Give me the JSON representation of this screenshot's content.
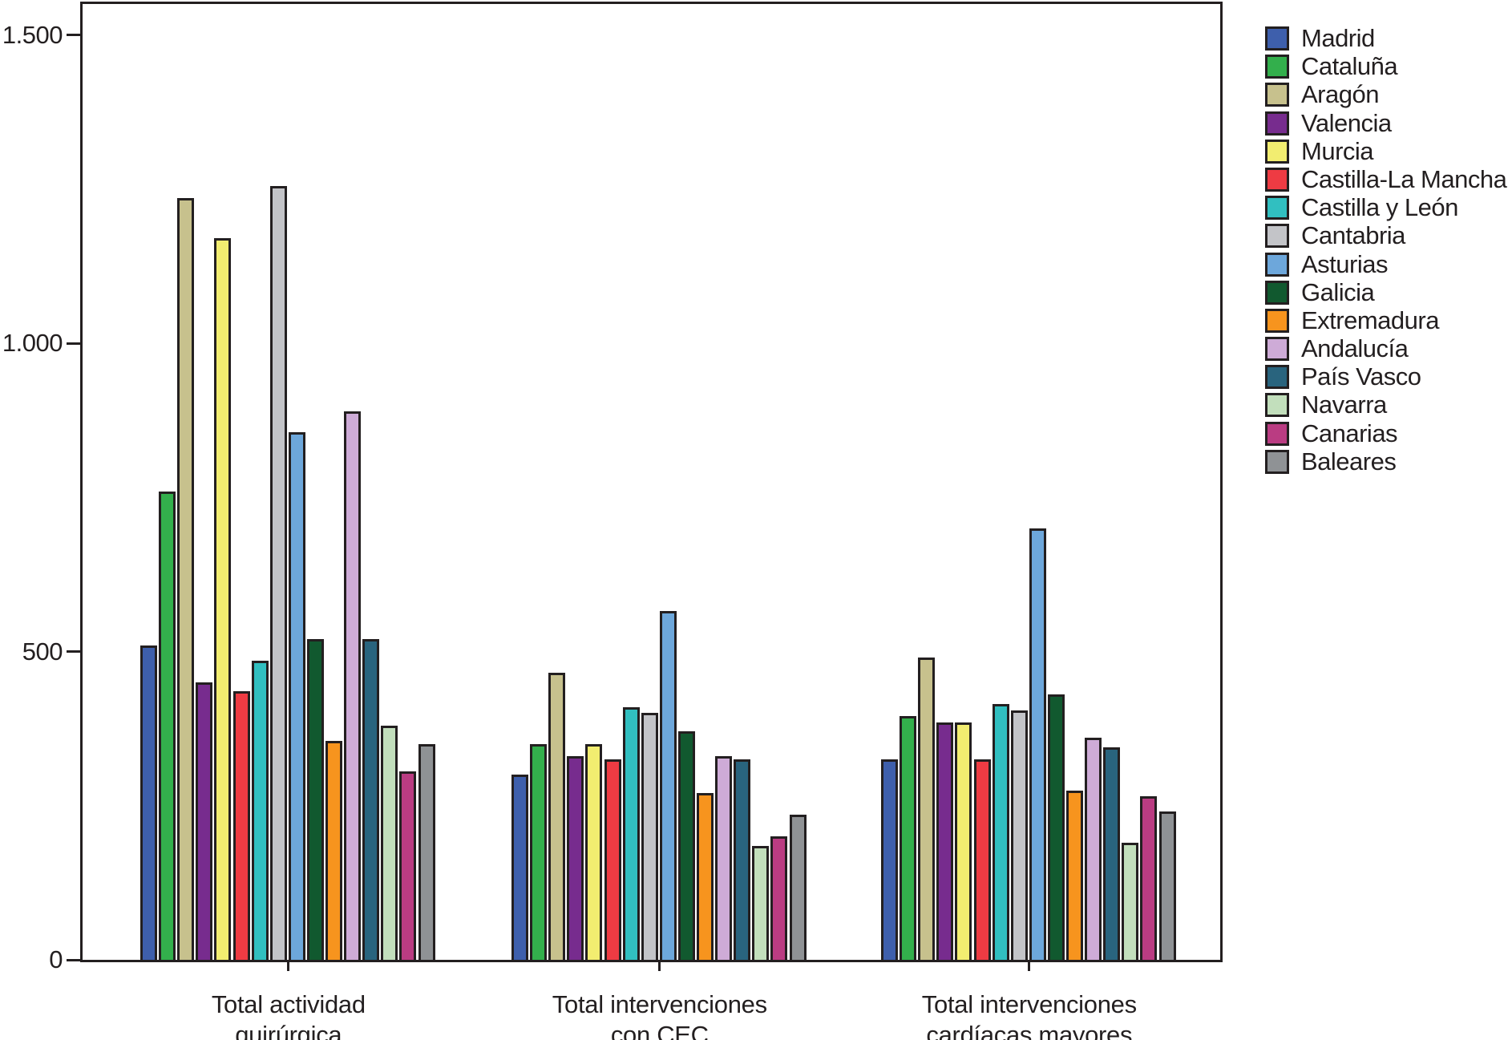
{
  "chart_data": {
    "type": "bar",
    "title": "",
    "categories": [
      "Total actividad\nquirúrgica",
      "Total intervenciones\ncon CEC",
      "Total intervenciones\ncardíacas mayores"
    ],
    "series": [
      {
        "name": "Madrid",
        "color": "#3E5FAC",
        "values": [
          510,
          300,
          325
        ]
      },
      {
        "name": "Cataluña",
        "color": "#33AF4C",
        "values": [
          760,
          350,
          395
        ]
      },
      {
        "name": "Aragón",
        "color": "#C7C18D",
        "values": [
          1235,
          465,
          490
        ]
      },
      {
        "name": "Valencia",
        "color": "#772C8E",
        "values": [
          450,
          330,
          385
        ]
      },
      {
        "name": "Murcia",
        "color": "#F2ED70",
        "values": [
          1170,
          350,
          385
        ]
      },
      {
        "name": "Castilla-La Mancha",
        "color": "#EE3B43",
        "values": [
          435,
          325,
          325
        ]
      },
      {
        "name": "Castilla y León",
        "color": "#31BFC0",
        "values": [
          485,
          410,
          415
        ]
      },
      {
        "name": "Cantabria",
        "color": "#C3C4C8",
        "values": [
          1255,
          400,
          405
        ]
      },
      {
        "name": "Asturias",
        "color": "#6DA7DB",
        "values": [
          855,
          565,
          700
        ]
      },
      {
        "name": "Galicia",
        "color": "#11592F",
        "values": [
          520,
          370,
          430
        ]
      },
      {
        "name": "Extremadura",
        "color": "#F7941E",
        "values": [
          355,
          270,
          275
        ]
      },
      {
        "name": "Andalucía",
        "color": "#CEABD7",
        "values": [
          890,
          330,
          360
        ]
      },
      {
        "name": "País Vasco",
        "color": "#29647E",
        "values": [
          520,
          325,
          345
        ]
      },
      {
        "name": "Navarra",
        "color": "#C2DFBC",
        "values": [
          380,
          185,
          190
        ]
      },
      {
        "name": "Canarias",
        "color": "#BA3C82",
        "values": [
          305,
          200,
          265
        ]
      },
      {
        "name": "Baleares",
        "color": "#8F9295",
        "values": [
          350,
          235,
          240
        ]
      }
    ],
    "ylim": [
      0,
      1550
    ],
    "yticks": [
      {
        "value": 0,
        "label": "0"
      },
      {
        "value": 500,
        "label": "500"
      },
      {
        "value": 1000,
        "label": "1.000"
      },
      {
        "value": 1500,
        "label": "1.500"
      }
    ],
    "grid": false,
    "legend_position": "right"
  },
  "colors": {
    "background": "#FFFFFF",
    "axis": "#231F20",
    "bar_outline": "#231F20",
    "text": "#231F20"
  }
}
